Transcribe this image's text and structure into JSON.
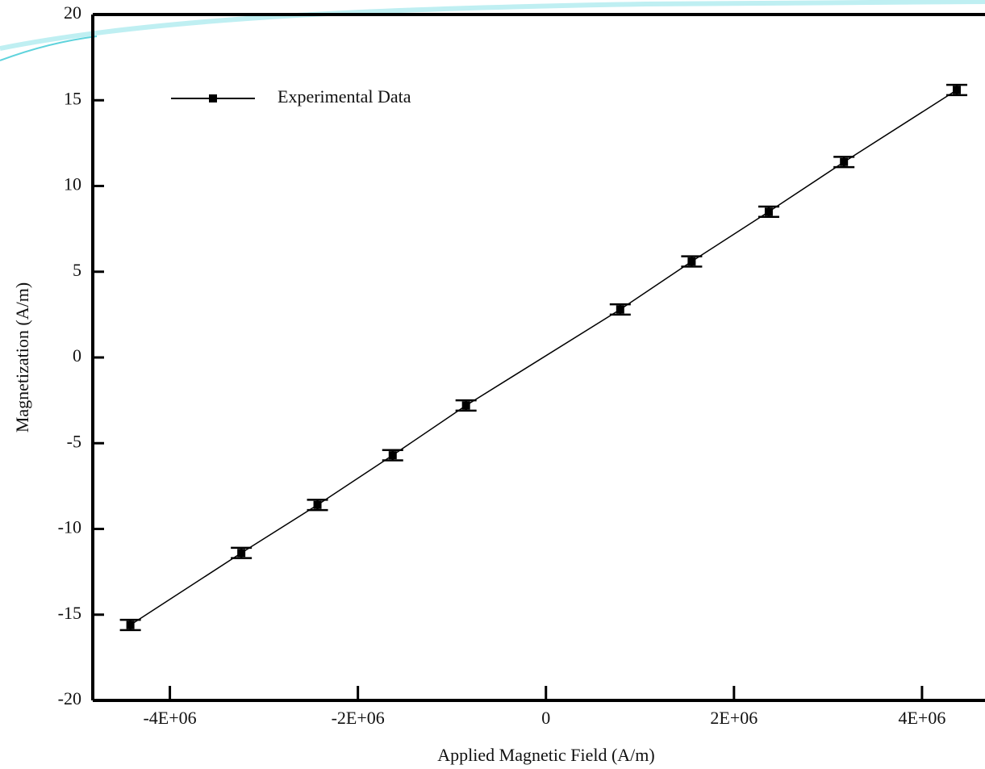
{
  "chart_data": {
    "type": "line",
    "xlabel": "Applied Magnetic Field (A/m)",
    "ylabel": "Magnetization (A/m)",
    "x": [
      -4420000,
      -3240000,
      -2430000,
      -1630000,
      -850000,
      790000,
      1550000,
      2370000,
      3170000,
      4370000
    ],
    "series": [
      {
        "name": "Experimental Data",
        "color": "#000000",
        "values": [
          -15.6,
          -11.4,
          -8.6,
          -5.7,
          -2.8,
          2.8,
          5.6,
          8.5,
          11.4,
          15.6
        ],
        "errors": [
          0.3,
          0.3,
          0.3,
          0.3,
          0.3,
          0.3,
          0.3,
          0.3,
          0.3,
          0.3
        ]
      }
    ],
    "xlim": [
      -4820000,
      4670000
    ],
    "ylim": [
      -20,
      20
    ],
    "xticks": [
      {
        "value": -4000000,
        "label": "-4E+06"
      },
      {
        "value": -2000000,
        "label": "-2E+06"
      },
      0,
      {
        "value": 2000000,
        "label": "2E+06"
      },
      {
        "value": 4000000,
        "label": "4E+06"
      }
    ],
    "yticks": [
      -20,
      -15,
      -10,
      -5,
      0,
      5,
      10,
      15,
      20
    ],
    "grid": false,
    "legend": "upper left"
  }
}
